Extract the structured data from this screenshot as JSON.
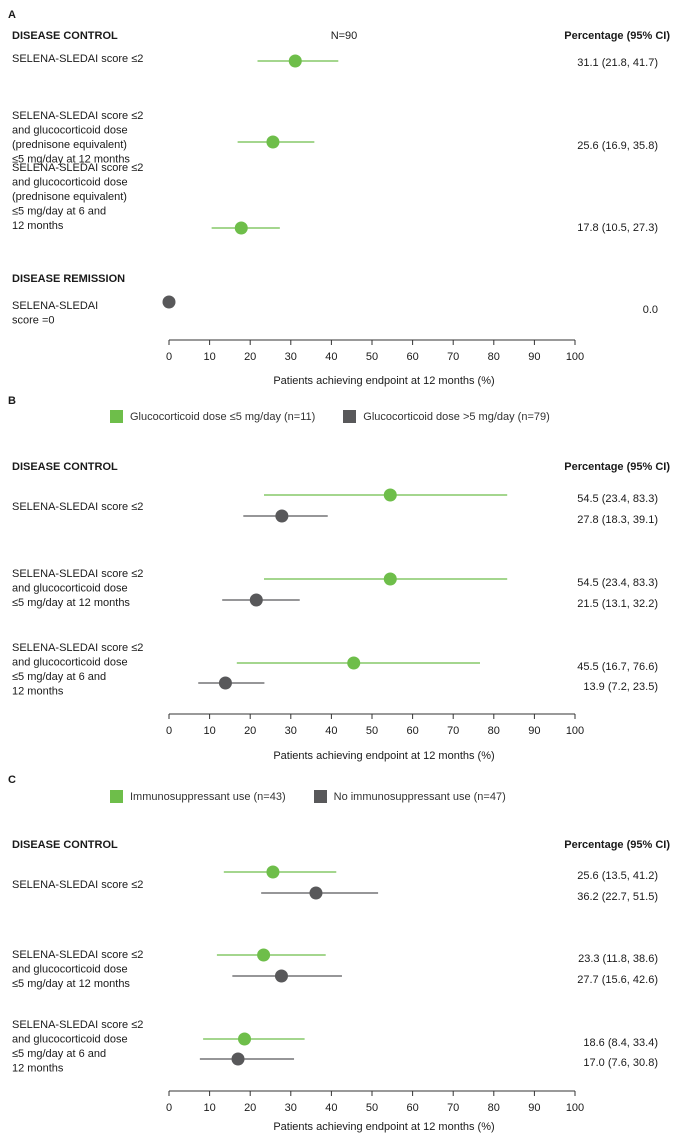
{
  "colors": {
    "green": "#6ebe4a",
    "gray": "#58585a",
    "text": "#1a1a1a",
    "axis": "#333333"
  },
  "chart_data": [
    {
      "panel": "A",
      "type": "forest",
      "n_label": "N=90",
      "value_header": "Percentage (95% CI)",
      "xlabel": "Patients achieving endpoint at 12 months (%)",
      "xlim": [
        0,
        100
      ],
      "xticks": [
        0,
        10,
        20,
        30,
        40,
        50,
        60,
        70,
        80,
        90,
        100
      ],
      "groups": [
        {
          "title": "DISEASE CONTROL",
          "items": [
            {
              "label": [
                "SELENA-SLEDAI score ≤2"
              ],
              "points": [
                {
                  "series": "all",
                  "value": 31.1,
                  "ci": [
                    21.8,
                    41.7
                  ],
                  "text": "31.1 (21.8, 41.7)"
                }
              ]
            },
            {
              "label": [
                "SELENA-SLEDAI score ≤2",
                "and glucocorticoid dose",
                "(prednisone equivalent)",
                "≤5 mg/day at 12 months"
              ],
              "points": [
                {
                  "series": "all",
                  "value": 25.6,
                  "ci": [
                    16.9,
                    35.8
                  ],
                  "text": "25.6 (16.9, 35.8)"
                }
              ]
            },
            {
              "label": [
                "SELENA-SLEDAI score ≤2",
                "and glucocorticoid dose",
                "(prednisone equivalent)",
                "≤5 mg/day at 6 and",
                "12 months"
              ],
              "points": [
                {
                  "series": "all",
                  "value": 17.8,
                  "ci": [
                    10.5,
                    27.3
                  ],
                  "text": "17.8 (10.5, 27.3)"
                }
              ]
            }
          ]
        },
        {
          "title": "DISEASE REMISSION",
          "items": [
            {
              "label": [
                "SELENA-SLEDAI",
                "score =0"
              ],
              "points": [
                {
                  "series": "remission",
                  "value": 0.0,
                  "ci": null,
                  "text": "0.0"
                }
              ]
            }
          ]
        }
      ]
    },
    {
      "panel": "B",
      "type": "forest",
      "legend": [
        {
          "key": "g",
          "name": "Glucocorticoid dose ≤5 mg/day (n=11)"
        },
        {
          "key": "k",
          "name": "Glucocorticoid dose >5 mg/day (n=79)"
        }
      ],
      "value_header": "Percentage (95% CI)",
      "xlabel": "Patients achieving endpoint at 12 months (%)",
      "xlim": [
        0,
        100
      ],
      "xticks": [
        0,
        10,
        20,
        30,
        40,
        50,
        60,
        70,
        80,
        90,
        100
      ],
      "groups": [
        {
          "title": "DISEASE CONTROL",
          "items": [
            {
              "label": [
                "SELENA-SLEDAI score ≤2"
              ],
              "points": [
                {
                  "series": "g",
                  "value": 54.5,
                  "ci": [
                    23.4,
                    83.3
                  ],
                  "text": "54.5 (23.4, 83.3)"
                },
                {
                  "series": "k",
                  "value": 27.8,
                  "ci": [
                    18.3,
                    39.1
                  ],
                  "text": "27.8 (18.3, 39.1)"
                }
              ]
            },
            {
              "label": [
                "SELENA-SLEDAI score ≤2",
                "and glucocorticoid dose",
                "≤5 mg/day at 12 months"
              ],
              "points": [
                {
                  "series": "g",
                  "value": 54.5,
                  "ci": [
                    23.4,
                    83.3
                  ],
                  "text": "54.5 (23.4, 83.3)"
                },
                {
                  "series": "k",
                  "value": 21.5,
                  "ci": [
                    13.1,
                    32.2
                  ],
                  "text": "21.5 (13.1, 32.2)"
                }
              ]
            },
            {
              "label": [
                "SELENA-SLEDAI score ≤2",
                "and glucocorticoid dose",
                "≤5 mg/day at 6 and",
                "12 months"
              ],
              "points": [
                {
                  "series": "g",
                  "value": 45.5,
                  "ci": [
                    16.7,
                    76.6
                  ],
                  "text": "45.5 (16.7, 76.6)"
                },
                {
                  "series": "k",
                  "value": 13.9,
                  "ci": [
                    7.2,
                    23.5
                  ],
                  "text": "13.9 (7.2, 23.5)"
                }
              ]
            }
          ]
        }
      ]
    },
    {
      "panel": "C",
      "type": "forest",
      "legend": [
        {
          "key": "g",
          "name": "Immunosuppressant use (n=43)"
        },
        {
          "key": "k",
          "name": "No immunosuppressant use (n=47)"
        }
      ],
      "value_header": "Percentage (95% CI)",
      "xlabel": "Patients achieving endpoint at 12 months (%)",
      "xlim": [
        0,
        100
      ],
      "xticks": [
        0,
        10,
        20,
        30,
        40,
        50,
        60,
        70,
        80,
        90,
        100
      ],
      "groups": [
        {
          "title": "DISEASE CONTROL",
          "items": [
            {
              "label": [
                "SELENA-SLEDAI score ≤2"
              ],
              "points": [
                {
                  "series": "g",
                  "value": 25.6,
                  "ci": [
                    13.5,
                    41.2
                  ],
                  "text": "25.6 (13.5, 41.2)"
                },
                {
                  "series": "k",
                  "value": 36.2,
                  "ci": [
                    22.7,
                    51.5
                  ],
                  "text": "36.2 (22.7, 51.5)"
                }
              ]
            },
            {
              "label": [
                "SELENA-SLEDAI score ≤2",
                "and glucocorticoid dose",
                "≤5 mg/day at 12 months"
              ],
              "points": [
                {
                  "series": "g",
                  "value": 23.3,
                  "ci": [
                    11.8,
                    38.6
                  ],
                  "text": "23.3 (11.8, 38.6)"
                },
                {
                  "series": "k",
                  "value": 27.7,
                  "ci": [
                    15.6,
                    42.6
                  ],
                  "text": "27.7 (15.6, 42.6)"
                }
              ]
            },
            {
              "label": [
                "SELENA-SLEDAI score ≤2",
                "and glucocorticoid dose",
                "≤5 mg/day at 6 and",
                "12 months"
              ],
              "points": [
                {
                  "series": "g",
                  "value": 18.6,
                  "ci": [
                    8.4,
                    33.4
                  ],
                  "text": "18.6 (8.4, 33.4)"
                },
                {
                  "series": "k",
                  "value": 17.0,
                  "ci": [
                    7.6,
                    30.8
                  ],
                  "text": "17.0 (7.6, 30.8)"
                }
              ]
            }
          ]
        }
      ]
    }
  ]
}
